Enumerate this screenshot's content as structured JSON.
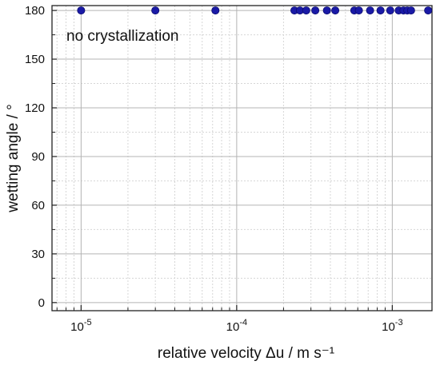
{
  "chart_data": {
    "type": "scatter",
    "title": "",
    "xlabel": "relative velocity Δu  /  m s⁻¹",
    "ylabel": "wetting angle  /  °",
    "x_scale": "log",
    "xlim": [
      6.5e-06,
      0.0018
    ],
    "ylim": [
      -5,
      183
    ],
    "y_ticks": [
      0,
      30,
      60,
      90,
      120,
      150,
      180
    ],
    "x_ticks": [
      {
        "value": 1e-05,
        "base": "10",
        "exp": "-5"
      },
      {
        "value": 0.0001,
        "base": "10",
        "exp": "-4"
      },
      {
        "value": 0.001,
        "base": "10",
        "exp": "-3"
      }
    ],
    "grid": true,
    "marker_color": "#1a1aa6",
    "annotation": "no crystallization",
    "series": [
      {
        "x": [
          1e-05,
          3e-05,
          7.3e-05,
          0.000235,
          0.000255,
          0.00028,
          0.00032,
          0.00038,
          0.00043,
          0.00057,
          0.00061,
          0.00072,
          0.00084,
          0.00097,
          0.0011,
          0.00118,
          0.00125,
          0.00132,
          0.0017
        ],
        "y": [
          180,
          180,
          180,
          180,
          180,
          180,
          180,
          180,
          180,
          180,
          180,
          180,
          180,
          180,
          180,
          180,
          180,
          180,
          180
        ]
      }
    ]
  }
}
